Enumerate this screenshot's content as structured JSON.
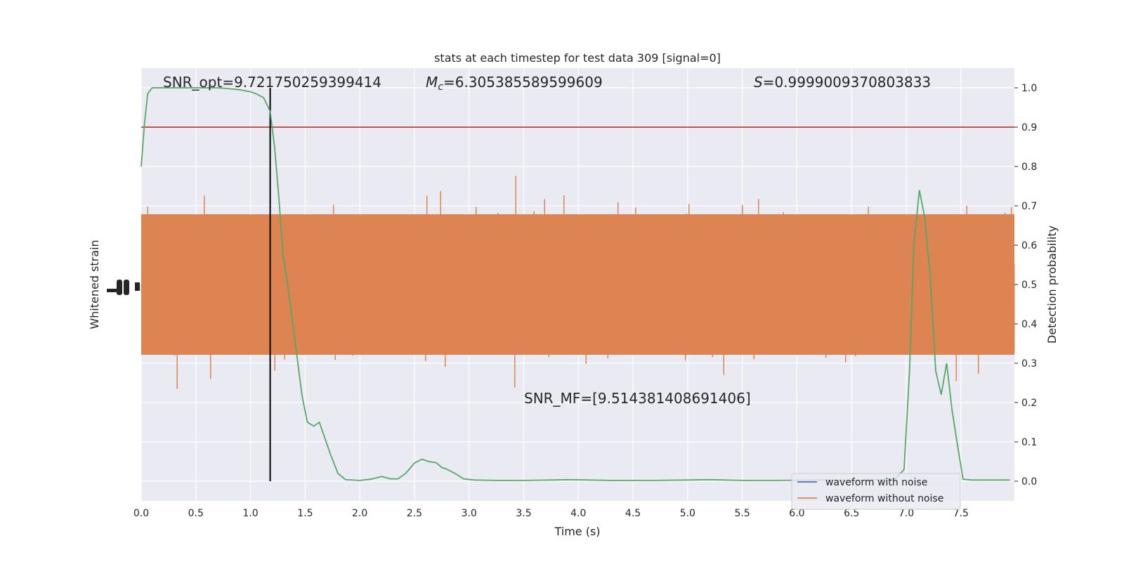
{
  "chart_data": {
    "type": "line",
    "title": "stats at each timestep for test data 309 [signal=0]",
    "xlabel": "Time (s)",
    "ylabel_left": "Whitened strain",
    "ylabel_right": "Detection probability",
    "xlim": [
      0.0,
      7.99
    ],
    "ylim_right": [
      -0.05,
      1.05
    ],
    "x_ticks": [
      "0.0",
      "0.5",
      "1.0",
      "1.5",
      "2.0",
      "2.5",
      "3.0",
      "3.5",
      "4.0",
      "4.5",
      "5.0",
      "5.5",
      "6.0",
      "6.5",
      "7.0",
      "7.5"
    ],
    "y_ticks_right": [
      "0.0",
      "0.1",
      "0.2",
      "0.3",
      "0.4",
      "0.5",
      "0.6",
      "0.7",
      "0.8",
      "0.9",
      "1.0"
    ],
    "grid": true,
    "legend_position": "lower-right",
    "annotations": {
      "snr_opt": "SNR_opt=9.721750259399414",
      "mc_symbol": "M",
      "mc_sub": "c",
      "mc_value": "=6.305385589599609",
      "s_symbol": "S",
      "s_value": "=0.9999009370803833",
      "snr_mf": "SNR_MF=[9.514381408691406]"
    },
    "threshold": 0.9,
    "marker_time": 1.18,
    "series": [
      {
        "name": "waveform with noise",
        "color": "#4c72b0"
      },
      {
        "name": "waveform without noise",
        "color": "#dd8452"
      }
    ],
    "detection_probability": {
      "color": "#55a868",
      "x": [
        0.0,
        0.03,
        0.06,
        0.1,
        0.15,
        0.2,
        0.3,
        0.4,
        0.5,
        0.6,
        0.7,
        0.8,
        0.9,
        1.0,
        1.05,
        1.12,
        1.18,
        1.22,
        1.26,
        1.3,
        1.35,
        1.42,
        1.47,
        1.52,
        1.58,
        1.63,
        1.68,
        1.73,
        1.8,
        1.87,
        2.0,
        2.1,
        2.2,
        2.28,
        2.35,
        2.42,
        2.5,
        2.57,
        2.63,
        2.7,
        2.75,
        2.8,
        2.87,
        2.95,
        3.05,
        3.25,
        3.5,
        3.75,
        3.9,
        4.1,
        4.3,
        4.7,
        5.0,
        5.2,
        5.5,
        5.8,
        6.2,
        6.5,
        6.75,
        6.9,
        6.98,
        7.03,
        7.07,
        7.12,
        7.17,
        7.22,
        7.27,
        7.32,
        7.37,
        7.42,
        7.47,
        7.52,
        7.6,
        7.7,
        7.8,
        7.95
      ],
      "y": [
        0.8,
        0.91,
        0.985,
        1.0,
        1.0,
        1.0,
        1.0,
        1.0,
        1.0,
        1.0,
        1.0,
        0.998,
        0.995,
        0.99,
        0.985,
        0.975,
        0.94,
        0.85,
        0.72,
        0.57,
        0.48,
        0.33,
        0.22,
        0.15,
        0.14,
        0.15,
        0.11,
        0.07,
        0.02,
        0.004,
        0.002,
        0.005,
        0.012,
        0.006,
        0.006,
        0.02,
        0.046,
        0.056,
        0.05,
        0.047,
        0.035,
        0.03,
        0.02,
        0.006,
        0.003,
        0.002,
        0.002,
        0.003,
        0.004,
        0.003,
        0.002,
        0.002,
        0.003,
        0.004,
        0.002,
        0.002,
        0.003,
        0.002,
        0.004,
        0.006,
        0.03,
        0.28,
        0.6,
        0.74,
        0.67,
        0.52,
        0.28,
        0.22,
        0.3,
        0.18,
        0.09,
        0.005,
        0.003,
        0.003,
        0.003,
        0.003
      ]
    }
  }
}
